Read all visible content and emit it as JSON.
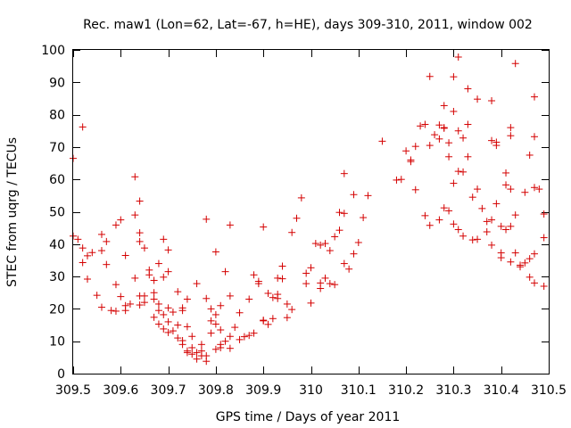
{
  "chart_data": {
    "type": "scatter",
    "title": "Rec. maw1 (Lon=62, Lat=-67, h=HE), days 309-310, 2011, window 002",
    "xlabel": "GPS time / Days of year 2011",
    "ylabel": "STEC from uqrg / TECUs",
    "xlim": [
      309.5,
      310.5
    ],
    "ylim": [
      0,
      100
    ],
    "x_ticks": [
      309.5,
      309.6,
      309.7,
      309.8,
      309.9,
      310,
      310.1,
      310.2,
      310.3,
      310.4,
      310.5
    ],
    "y_ticks": [
      0,
      10,
      20,
      30,
      40,
      50,
      60,
      70,
      80,
      90,
      100
    ],
    "marker": "plus",
    "marker_color": "#d40000",
    "grid": false,
    "legend": "none",
    "series": [
      {
        "points": [
          [
            309.5,
            66.5
          ],
          [
            309.5,
            42.5
          ],
          [
            309.51,
            41.5
          ],
          [
            309.52,
            76.2
          ],
          [
            309.52,
            34.3
          ],
          [
            309.52,
            38.8
          ],
          [
            309.53,
            36.4
          ],
          [
            309.53,
            29.2
          ],
          [
            309.54,
            37.4
          ],
          [
            309.55,
            24.2
          ],
          [
            309.56,
            43.0
          ],
          [
            309.56,
            38.0
          ],
          [
            309.56,
            20.5
          ],
          [
            309.57,
            40.8
          ],
          [
            309.57,
            33.7
          ],
          [
            309.58,
            19.5
          ],
          [
            309.59,
            45.9
          ],
          [
            309.59,
            27.5
          ],
          [
            309.59,
            19.3
          ],
          [
            309.6,
            47.5
          ],
          [
            309.6,
            23.8
          ],
          [
            309.61,
            19.5
          ],
          [
            309.61,
            36.5
          ],
          [
            309.61,
            21.0
          ],
          [
            309.62,
            21.5
          ],
          [
            309.63,
            60.8
          ],
          [
            309.63,
            49.0
          ],
          [
            309.63,
            29.5
          ],
          [
            309.64,
            53.3
          ],
          [
            309.64,
            43.5
          ],
          [
            309.64,
            40.8
          ],
          [
            309.64,
            24.0
          ],
          [
            309.64,
            21.2
          ],
          [
            309.65,
            22.0
          ],
          [
            309.65,
            24.0
          ],
          [
            309.65,
            38.8
          ],
          [
            309.66,
            32.0
          ],
          [
            309.66,
            30.5
          ],
          [
            309.67,
            23.0
          ],
          [
            309.67,
            28.8
          ],
          [
            309.67,
            25.0
          ],
          [
            309.67,
            17.4
          ],
          [
            309.68,
            34.0
          ],
          [
            309.68,
            21.5
          ],
          [
            309.68,
            19.5
          ],
          [
            309.68,
            15.3
          ],
          [
            309.69,
            41.5
          ],
          [
            309.69,
            29.8
          ],
          [
            309.69,
            18.2
          ],
          [
            309.69,
            13.8
          ],
          [
            309.7,
            38.2
          ],
          [
            309.7,
            20.3
          ],
          [
            309.7,
            31.5
          ],
          [
            309.7,
            16.0
          ],
          [
            309.7,
            12.7
          ],
          [
            309.71,
            19.0
          ],
          [
            309.71,
            13.2
          ],
          [
            309.72,
            25.3
          ],
          [
            309.72,
            15.0
          ],
          [
            309.72,
            11.0
          ],
          [
            309.73,
            19.5
          ],
          [
            309.73,
            20.3
          ],
          [
            309.73,
            10.2
          ],
          [
            309.73,
            9.0
          ],
          [
            309.74,
            23.0
          ],
          [
            309.74,
            14.5
          ],
          [
            309.74,
            7.0
          ],
          [
            309.74,
            6.5
          ],
          [
            309.75,
            6.0
          ],
          [
            309.75,
            8.0
          ],
          [
            309.75,
            11.5
          ],
          [
            309.76,
            27.8
          ],
          [
            309.76,
            6.5
          ],
          [
            309.76,
            4.5
          ],
          [
            309.77,
            5.5
          ],
          [
            309.77,
            7.0
          ],
          [
            309.77,
            9.0
          ],
          [
            309.78,
            47.7
          ],
          [
            309.78,
            23.2
          ],
          [
            309.78,
            5.5
          ],
          [
            309.78,
            3.8
          ],
          [
            309.79,
            12.5
          ],
          [
            309.79,
            16.3
          ],
          [
            309.79,
            20.0
          ],
          [
            309.8,
            37.6
          ],
          [
            309.8,
            15.3
          ],
          [
            309.8,
            18.2
          ],
          [
            309.8,
            7.5
          ],
          [
            309.81,
            8.0
          ],
          [
            309.81,
            21.0
          ],
          [
            309.81,
            13.5
          ],
          [
            309.81,
            9.0
          ],
          [
            309.82,
            31.5
          ],
          [
            309.82,
            10.0
          ],
          [
            309.83,
            45.9
          ],
          [
            309.83,
            24.0
          ],
          [
            309.83,
            11.5
          ],
          [
            309.83,
            7.8
          ],
          [
            309.84,
            14.3
          ],
          [
            309.85,
            18.8
          ],
          [
            309.85,
            10.5
          ],
          [
            309.86,
            11.4
          ],
          [
            309.87,
            11.8
          ],
          [
            309.87,
            23.0
          ],
          [
            309.88,
            30.5
          ],
          [
            309.88,
            12.5
          ],
          [
            309.89,
            27.8
          ],
          [
            309.89,
            28.5
          ],
          [
            309.9,
            45.3
          ],
          [
            309.9,
            16.3
          ],
          [
            309.9,
            16.5
          ],
          [
            309.91,
            24.8
          ],
          [
            309.91,
            15.2
          ],
          [
            309.92,
            23.5
          ],
          [
            309.92,
            17.0
          ],
          [
            309.93,
            29.5
          ],
          [
            309.93,
            23.2
          ],
          [
            309.93,
            24.5
          ],
          [
            309.94,
            29.3
          ],
          [
            309.94,
            33.2
          ],
          [
            309.95,
            17.3
          ],
          [
            309.95,
            21.5
          ],
          [
            309.96,
            43.6
          ],
          [
            309.96,
            19.8
          ],
          [
            309.97,
            48.0
          ],
          [
            309.98,
            54.3
          ],
          [
            309.99,
            27.8
          ],
          [
            309.99,
            31.0
          ],
          [
            310.0,
            21.8
          ],
          [
            310.0,
            32.7
          ],
          [
            310.01,
            40.2
          ],
          [
            310.02,
            26.3
          ],
          [
            310.02,
            28.0
          ],
          [
            310.02,
            39.7
          ],
          [
            310.03,
            40.2
          ],
          [
            310.03,
            29.5
          ],
          [
            310.04,
            27.8
          ],
          [
            310.04,
            38.0
          ],
          [
            310.05,
            42.3
          ],
          [
            310.05,
            27.5
          ],
          [
            310.06,
            49.8
          ],
          [
            310.06,
            44.3
          ],
          [
            310.07,
            49.5
          ],
          [
            310.07,
            34.0
          ],
          [
            310.07,
            61.8
          ],
          [
            310.08,
            32.3
          ],
          [
            310.09,
            55.3
          ],
          [
            310.09,
            37.0
          ],
          [
            310.1,
            40.5
          ],
          [
            310.11,
            48.2
          ],
          [
            310.12,
            55.0
          ],
          [
            310.15,
            71.8
          ],
          [
            310.18,
            59.8
          ],
          [
            310.19,
            60.0
          ],
          [
            310.2,
            68.8
          ],
          [
            310.21,
            65.5
          ],
          [
            310.21,
            66.0
          ],
          [
            310.22,
            70.2
          ],
          [
            310.22,
            56.8
          ],
          [
            310.23,
            76.5
          ],
          [
            310.24,
            77.0
          ],
          [
            310.24,
            48.8
          ],
          [
            310.25,
            70.5
          ],
          [
            310.25,
            45.8
          ],
          [
            310.25,
            91.8
          ],
          [
            310.26,
            73.8
          ],
          [
            310.27,
            76.8
          ],
          [
            310.27,
            72.5
          ],
          [
            310.27,
            47.5
          ],
          [
            310.28,
            82.8
          ],
          [
            310.28,
            75.8
          ],
          [
            310.28,
            76.0
          ],
          [
            310.28,
            51.2
          ],
          [
            310.29,
            71.3
          ],
          [
            310.29,
            67.0
          ],
          [
            310.29,
            50.3
          ],
          [
            310.3,
            91.7
          ],
          [
            310.3,
            81.0
          ],
          [
            310.3,
            58.8
          ],
          [
            310.3,
            46.2
          ],
          [
            310.31,
            97.8
          ],
          [
            310.31,
            75.0
          ],
          [
            310.31,
            62.5
          ],
          [
            310.31,
            44.5
          ],
          [
            310.32,
            72.8
          ],
          [
            310.32,
            62.3
          ],
          [
            310.32,
            42.5
          ],
          [
            310.33,
            88.0
          ],
          [
            310.33,
            77.0
          ],
          [
            310.33,
            67.0
          ],
          [
            310.34,
            54.5
          ],
          [
            310.34,
            41.3
          ],
          [
            310.35,
            84.8
          ],
          [
            310.35,
            57.0
          ],
          [
            310.35,
            41.5
          ],
          [
            310.36,
            51.0
          ],
          [
            310.37,
            43.8
          ],
          [
            310.37,
            47.0
          ],
          [
            310.38,
            84.3
          ],
          [
            310.38,
            72.0
          ],
          [
            310.38,
            47.5
          ],
          [
            310.38,
            39.7
          ],
          [
            310.39,
            71.5
          ],
          [
            310.39,
            70.5
          ],
          [
            310.39,
            52.5
          ],
          [
            310.4,
            45.5
          ],
          [
            310.4,
            37.3
          ],
          [
            310.4,
            35.8
          ],
          [
            310.41,
            62.0
          ],
          [
            310.41,
            58.3
          ],
          [
            310.41,
            44.5
          ],
          [
            310.42,
            76.0
          ],
          [
            310.42,
            73.5
          ],
          [
            310.42,
            57.0
          ],
          [
            310.42,
            45.5
          ],
          [
            310.42,
            34.5
          ],
          [
            310.43,
            95.8
          ],
          [
            310.43,
            49.0
          ],
          [
            310.43,
            37.3
          ],
          [
            310.44,
            33.0
          ],
          [
            310.44,
            33.5
          ],
          [
            310.45,
            56.0
          ],
          [
            310.45,
            34.2
          ],
          [
            310.46,
            67.5
          ],
          [
            310.46,
            29.8
          ],
          [
            310.46,
            35.5
          ],
          [
            310.47,
            85.5
          ],
          [
            310.47,
            73.2
          ],
          [
            310.47,
            57.5
          ],
          [
            310.47,
            28.0
          ],
          [
            310.47,
            37.0
          ],
          [
            310.48,
            57.0
          ],
          [
            310.49,
            49.3
          ],
          [
            310.49,
            42.0
          ],
          [
            310.49,
            27.0
          ]
        ]
      }
    ]
  }
}
